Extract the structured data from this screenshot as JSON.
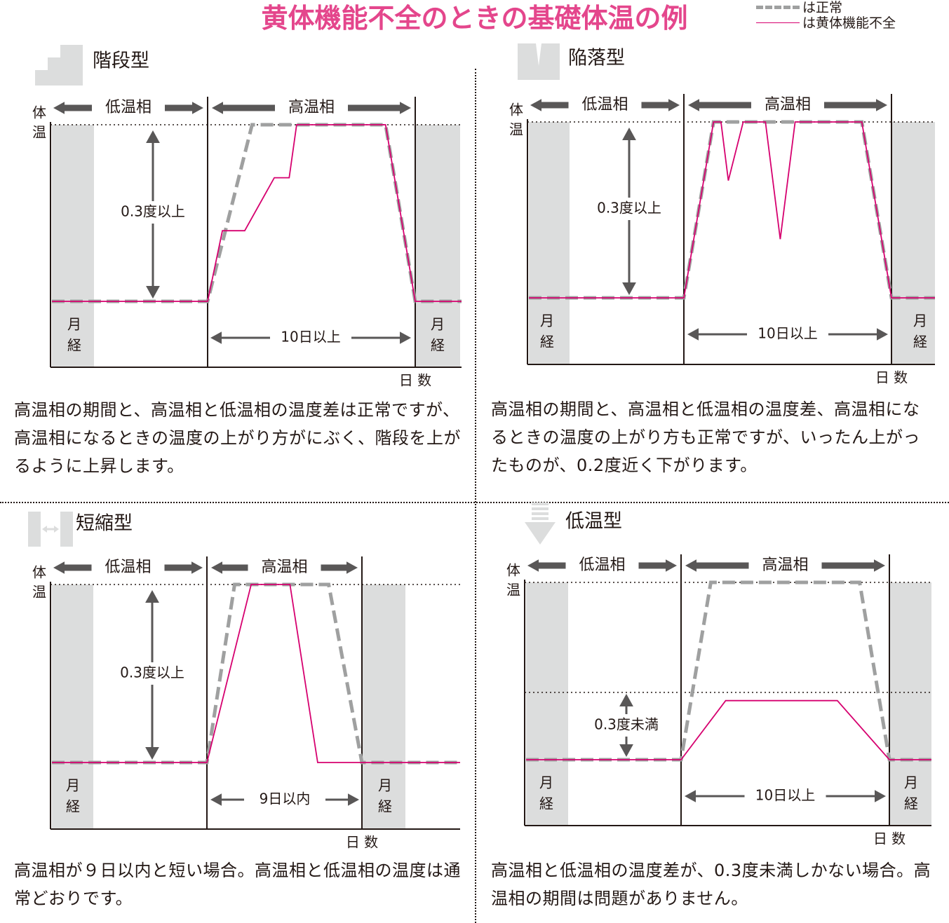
{
  "title": "黄体機能不全のときの基礎体温の例",
  "legend": {
    "normal": "は正常",
    "luteal": "は黄体機能不全"
  },
  "colors": {
    "normal": "#9fa0a0",
    "luteal": "#d6006f",
    "title": "#e4468c",
    "band": "#dcdddd",
    "arrow": "#595757"
  },
  "labels": {
    "low_phase": "低温相",
    "high_phase": "高温相",
    "temp": "体温",
    "days": "日数",
    "menses": "月経"
  },
  "chart_data": [
    {
      "type": "line",
      "pattern": "階段型",
      "icon": "stairs-icon",
      "series": [
        {
          "name": "は正常",
          "x": [
            0,
            10.5,
            13.5,
            22.5,
            24.5,
            27.5
          ],
          "y": [
            0,
            0,
            0.3,
            0.3,
            0,
            0
          ]
        },
        {
          "name": "は黄体機能不全",
          "x": [
            0,
            10.5,
            11.5,
            13,
            15,
            16,
            16.5,
            22.5,
            24.5,
            27.5
          ],
          "y": [
            0,
            0,
            0.12,
            0.12,
            0.21,
            0.21,
            0.3,
            0.3,
            0,
            0
          ]
        }
      ],
      "xlim": [
        0,
        27.5
      ],
      "ylim": [
        0,
        0.3
      ],
      "annotations": {
        "diff": "0.3度以上",
        "period": "10日以上"
      },
      "description": "高温相の期間と、高温相と低温相の温度差は正常ですが、高温相になるときの温度の上がり方がにぶく、階段を上がるように上昇します。"
    },
    {
      "type": "line",
      "pattern": "陥落型",
      "icon": "dip-icon",
      "series": [
        {
          "name": "は正常",
          "x": [
            0,
            10.5,
            12.5,
            22.5,
            24.5,
            27.5
          ],
          "y": [
            0,
            0,
            0.3,
            0.3,
            0,
            0
          ]
        },
        {
          "name": "は黄体機能不全",
          "x": [
            0,
            10.5,
            12.5,
            13,
            13.5,
            14.5,
            15.5,
            16,
            17,
            18,
            22.5,
            24.5,
            27.5
          ],
          "y": [
            0,
            0,
            0.3,
            0.3,
            0.2,
            0.3,
            0.3,
            0.3,
            0.1,
            0.3,
            0.3,
            0,
            0
          ]
        }
      ],
      "xlim": [
        0,
        27.5
      ],
      "ylim": [
        0,
        0.3
      ],
      "annotations": {
        "diff": "0.3度以上",
        "period": "10日以上"
      },
      "description": "高温相の期間と、高温相と低温相の温度差、高温相になるときの温度の上がり方も正常ですが、いったん上がったものが、0.2度近く下がります。"
    },
    {
      "type": "line",
      "pattern": "短縮型",
      "icon": "shorten-icon",
      "series": [
        {
          "name": "は正常",
          "x": [
            0,
            10.5,
            13,
            21.5,
            24.5,
            27.5
          ],
          "y": [
            0,
            0,
            0.3,
            0.3,
            0,
            0
          ]
        },
        {
          "name": "は黄体機能不全",
          "x": [
            0,
            10.5,
            14.5,
            18,
            20.5,
            27.5
          ],
          "y": [
            0,
            0,
            0.3,
            0.3,
            0,
            0
          ]
        }
      ],
      "xlim": [
        0,
        27.5
      ],
      "ylim": [
        0,
        0.3
      ],
      "annotations": {
        "diff": "0.3度以上",
        "period": "9日以内"
      },
      "description": "高温相が９日以内と短い場合。高温相と低温相の温度は通常どおりです。"
    },
    {
      "type": "line",
      "pattern": "低温型",
      "icon": "down-arrow-icon",
      "series": [
        {
          "name": "は正常",
          "x": [
            0,
            10.5,
            12.5,
            22.5,
            24.5,
            27.5
          ],
          "y": [
            0,
            0,
            0.3,
            0.3,
            0,
            0
          ]
        },
        {
          "name": "は黄体機能不全",
          "x": [
            0,
            10.5,
            13.5,
            21,
            24.5,
            27.5
          ],
          "y": [
            0,
            0,
            0.1,
            0.1,
            0,
            0
          ]
        }
      ],
      "xlim": [
        0,
        27.5
      ],
      "ylim": [
        0,
        0.3
      ],
      "annotations": {
        "diff": "0.3度未満",
        "period": "10日以上"
      },
      "description": "高温相と低温相の温度差が、0.3度未満しかない場合。高温相の期間は問題がありません。"
    }
  ]
}
